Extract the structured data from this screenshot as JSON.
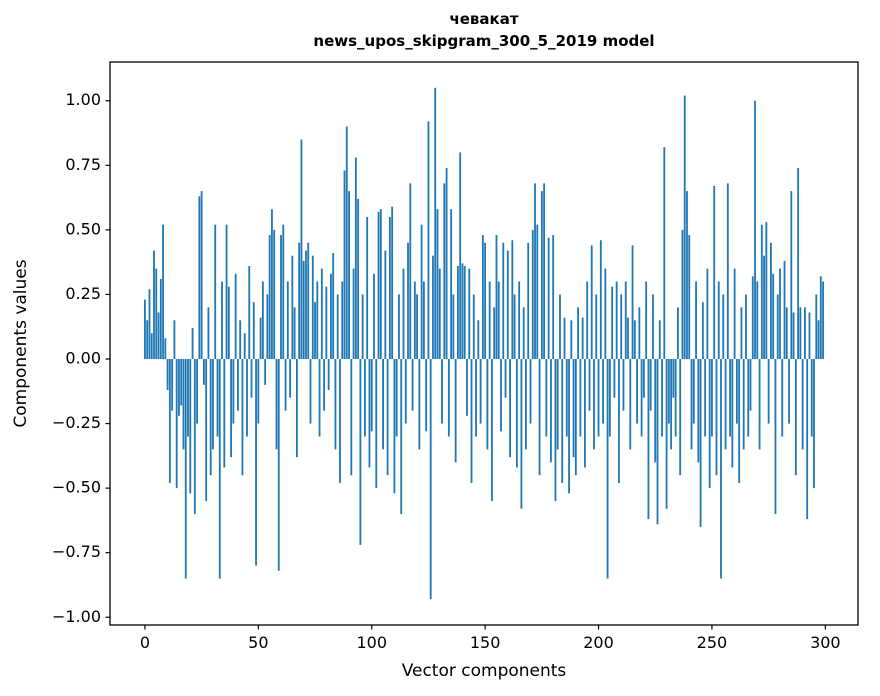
{
  "chart_data": {
    "type": "bar",
    "title_line1": "чевакат",
    "title_line2": "news_upos_skipgram_300_5_2019 model",
    "xlabel": "Vector components",
    "ylabel": "Components values",
    "bar_color": "#1f77b4",
    "frame_color": "#000000",
    "xlim": [
      -15.4,
      314.4
    ],
    "ylim": [
      -1.03,
      1.15
    ],
    "xticks": [
      0,
      50,
      100,
      150,
      200,
      250,
      300
    ],
    "yticks": [
      -1.0,
      -0.75,
      -0.5,
      -0.25,
      0.0,
      0.25,
      0.5,
      0.75,
      1.0
    ],
    "bar_width": 0.8,
    "values": [
      0.23,
      0.15,
      0.27,
      0.1,
      0.42,
      0.35,
      0.18,
      0.31,
      0.52,
      0.08,
      -0.12,
      -0.48,
      -0.2,
      0.15,
      -0.5,
      -0.22,
      -0.18,
      -0.35,
      -0.85,
      -0.3,
      -0.52,
      0.12,
      -0.6,
      -0.25,
      0.63,
      0.65,
      -0.1,
      -0.55,
      0.2,
      -0.45,
      -0.35,
      0.52,
      -0.3,
      -0.85,
      0.3,
      -0.42,
      0.52,
      0.28,
      -0.38,
      -0.25,
      0.33,
      -0.2,
      0.15,
      -0.45,
      0.1,
      -0.3,
      0.36,
      -0.15,
      0.22,
      -0.8,
      -0.25,
      0.16,
      0.3,
      -0.1,
      0.25,
      0.48,
      0.58,
      0.5,
      -0.35,
      -0.82,
      0.48,
      0.52,
      -0.2,
      0.3,
      -0.15,
      0.4,
      0.2,
      -0.38,
      0.45,
      0.85,
      0.38,
      0.42,
      0.45,
      -0.25,
      0.4,
      0.22,
      0.3,
      -0.3,
      0.35,
      -0.2,
      0.28,
      -0.12,
      0.33,
      0.41,
      -0.35,
      0.25,
      -0.48,
      0.3,
      0.73,
      0.9,
      0.65,
      -0.45,
      0.35,
      0.78,
      0.62,
      -0.72,
      0.25,
      -0.3,
      0.55,
      -0.42,
      -0.28,
      0.33,
      -0.5,
      0.57,
      0.58,
      -0.35,
      0.42,
      -0.45,
      0.55,
      0.59,
      -0.52,
      -0.3,
      0.25,
      -0.6,
      0.35,
      -0.25,
      0.45,
      0.68,
      -0.2,
      0.3,
      0.25,
      -0.35,
      0.52,
      0.3,
      -0.28,
      0.92,
      -0.93,
      0.4,
      1.05,
      0.58,
      0.35,
      -0.25,
      0.68,
      0.74,
      -0.3,
      0.58,
      0.25,
      -0.4,
      0.36,
      0.8,
      0.37,
      0.36,
      -0.22,
      0.35,
      -0.48,
      0.25,
      -0.3,
      0.15,
      -0.25,
      0.48,
      0.45,
      -0.35,
      0.3,
      -0.55,
      0.2,
      0.48,
      0.3,
      -0.28,
      0.45,
      -0.15,
      0.42,
      -0.38,
      0.46,
      0.25,
      -0.42,
      0.3,
      -0.58,
      0.2,
      -0.35,
      0.45,
      -0.25,
      0.5,
      0.68,
      0.52,
      -0.45,
      0.65,
      0.68,
      -0.3,
      0.47,
      -0.4,
      0.48,
      -0.55,
      -0.35,
      0.25,
      -0.48,
      0.16,
      -0.3,
      -0.52,
      0.15,
      -0.38,
      -0.45,
      0.2,
      -0.3,
      0.16,
      -0.42,
      0.3,
      -0.2,
      0.44,
      -0.35,
      0.25,
      -0.3,
      0.46,
      -0.25,
      0.35,
      -0.85,
      -0.3,
      0.28,
      -0.15,
      0.3,
      -0.48,
      0.25,
      -0.2,
      0.3,
      0.16,
      -0.35,
      0.44,
      0.15,
      -0.25,
      0.2,
      -0.3,
      -0.15,
      0.3,
      -0.62,
      -0.2,
      0.25,
      -0.4,
      -0.64,
      0.15,
      -0.3,
      0.82,
      -0.58,
      -0.25,
      -0.35,
      -0.15,
      -0.3,
      0.2,
      -0.45,
      0.5,
      1.02,
      0.65,
      0.48,
      -0.35,
      -0.25,
      0.3,
      -0.4,
      -0.65,
      0.22,
      -0.3,
      0.35,
      -0.5,
      -0.3,
      0.67,
      -0.45,
      0.3,
      -0.85,
      0.25,
      -0.35,
      0.68,
      -0.3,
      -0.42,
      0.35,
      -0.25,
      -0.48,
      0.2,
      -0.35,
      0.25,
      -0.3,
      -0.2,
      0.32,
      1.0,
      0.3,
      -0.35,
      0.52,
      0.4,
      0.53,
      -0.25,
      0.45,
      0.33,
      -0.6,
      0.25,
      0.35,
      -0.3,
      0.38,
      0.2,
      -0.25,
      0.65,
      0.18,
      -0.45,
      0.74,
      0.2,
      -0.35,
      0.2,
      -0.62,
      0.18,
      -0.3,
      -0.5,
      0.25,
      0.15,
      0.32,
      0.3
    ]
  }
}
